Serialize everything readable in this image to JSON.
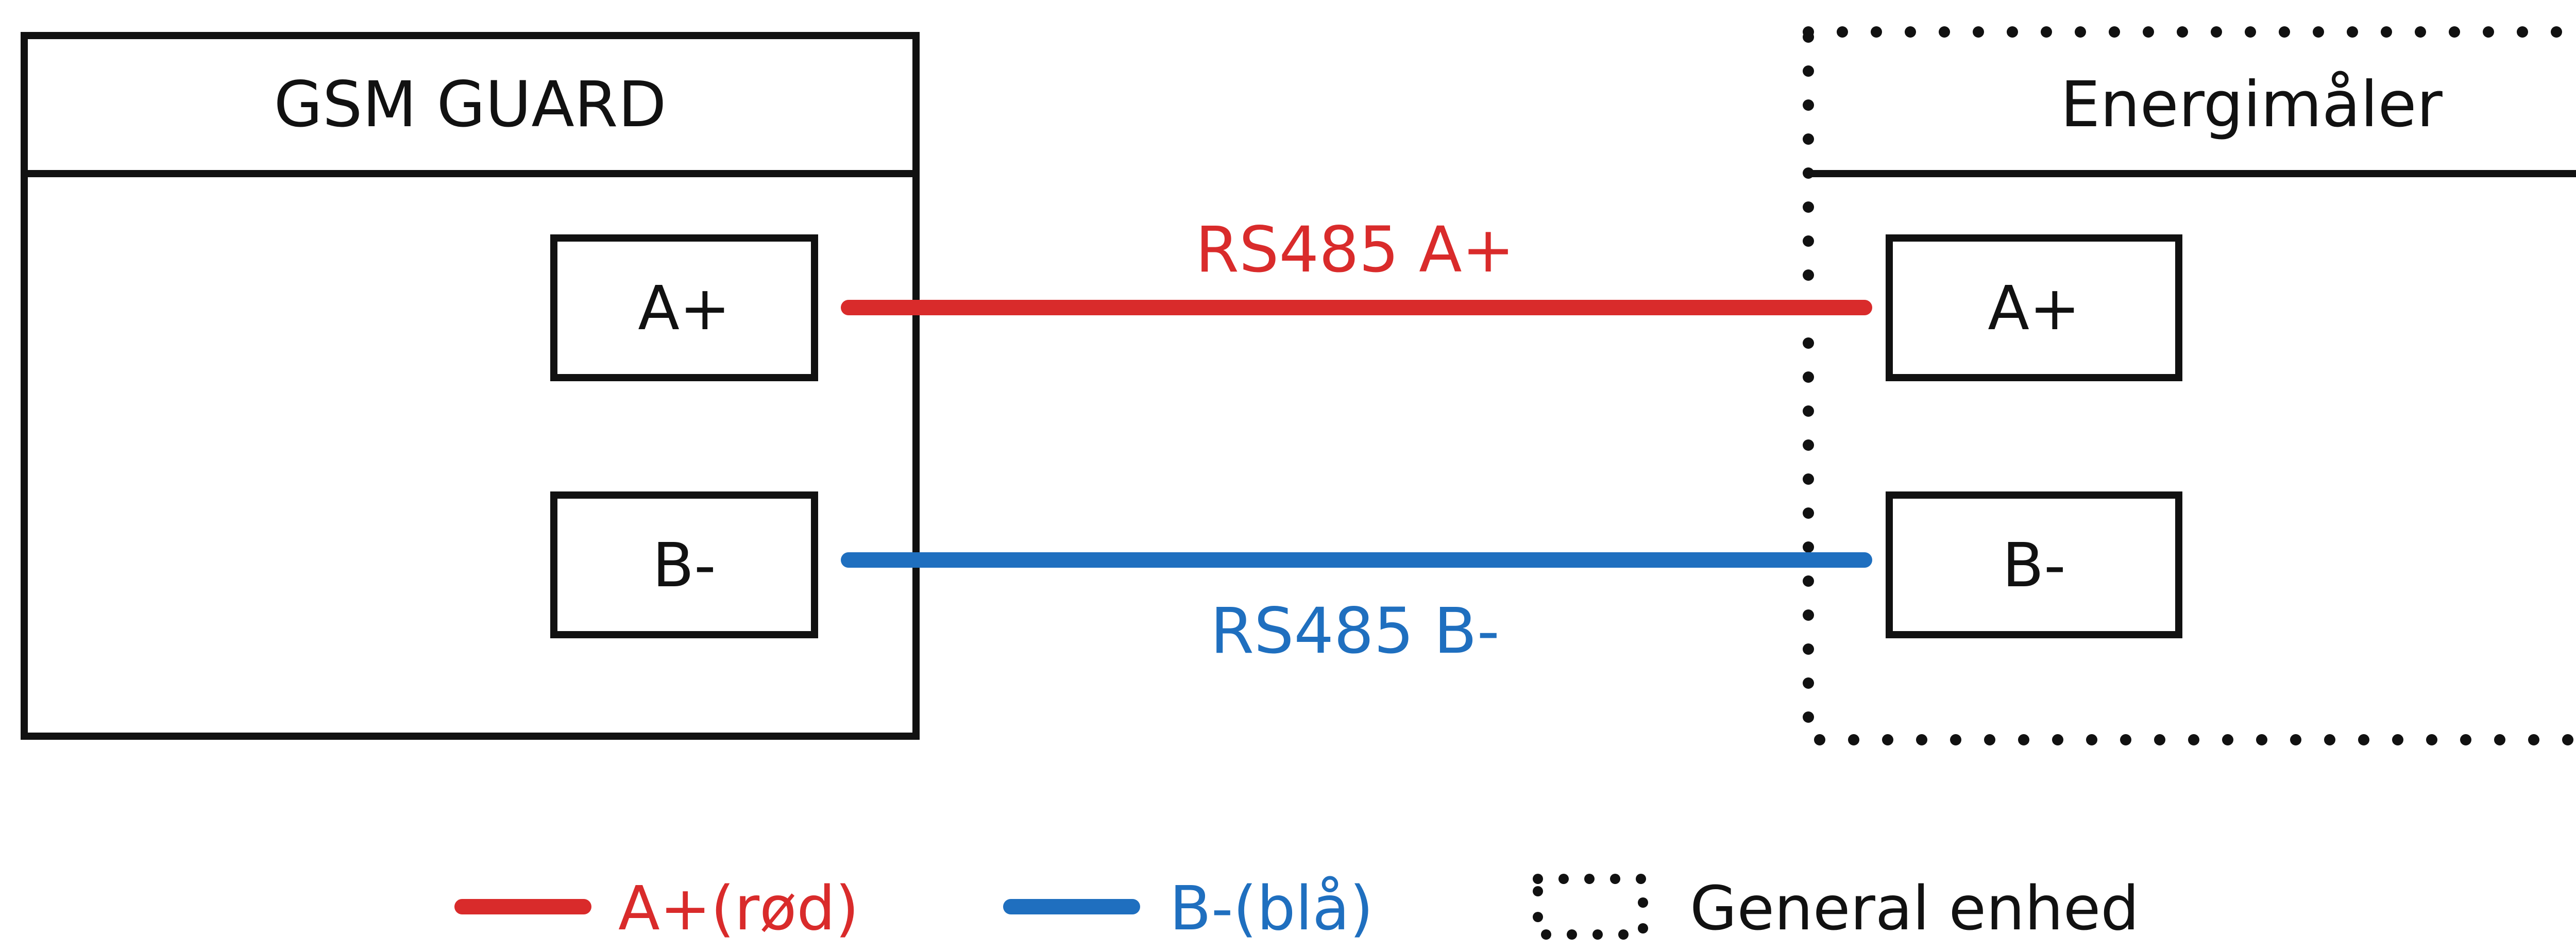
{
  "devices": {
    "gsm_guard": {
      "title": "GSM GUARD",
      "terminal_a": "A+",
      "terminal_b": "B-"
    },
    "energy_meter": {
      "title": "Energimåler",
      "terminal_a": "A+",
      "terminal_b": "B-"
    }
  },
  "wires": {
    "a": {
      "label": "RS485 A+",
      "color": "#d92b2b"
    },
    "b": {
      "label": "RS485 B-",
      "color": "#1f6fbf"
    }
  },
  "legend": {
    "a_label": "A+(rød)",
    "b_label": "B-(blå)",
    "dashed_label": "General enhed"
  },
  "colors": {
    "outline": "#111111",
    "red": "#d92b2b",
    "blue": "#1f6fbf"
  }
}
